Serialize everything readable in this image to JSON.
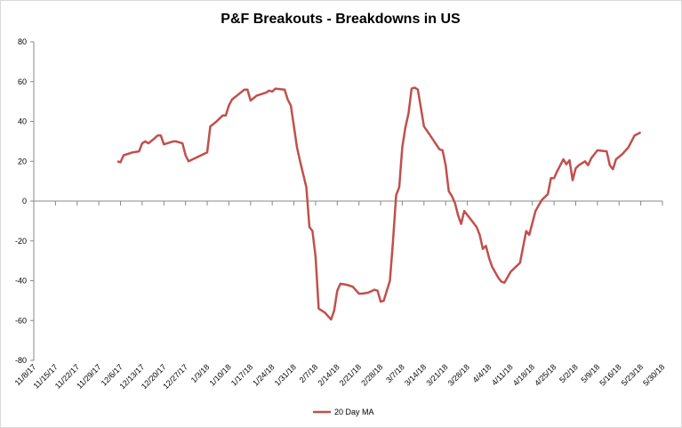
{
  "chart_data": {
    "type": "line",
    "title": "P&F Breakouts - Breakdowns in US",
    "x": [
      "12/5/17",
      "12/6/17",
      "12/7/17",
      "12/10/17",
      "12/12/17",
      "12/13/17",
      "12/14/17",
      "12/15/17",
      "12/17/17",
      "12/18/17",
      "12/19/17",
      "12/20/17",
      "12/23/17",
      "12/24/17",
      "12/26/17",
      "12/27/17",
      "12/28/17",
      "1/3/18",
      "1/4/18",
      "1/6/18",
      "1/8/18",
      "1/9/18",
      "1/10/18",
      "1/11/18",
      "1/13/18",
      "1/15/18",
      "1/16/18",
      "1/17/18",
      "1/19/18",
      "1/22/18",
      "1/23/18",
      "1/24/18",
      "1/25/18",
      "1/28/18",
      "1/29/18",
      "1/30/18",
      "2/1/18",
      "2/2/18",
      "2/4/18",
      "2/5/18",
      "2/6/18",
      "2/7/18",
      "2/8/18",
      "2/10/18",
      "2/12/18",
      "2/13/18",
      "2/14/18",
      "2/15/18",
      "2/17/18",
      "2/19/18",
      "2/21/18",
      "2/22/18",
      "2/24/18",
      "2/26/18",
      "2/27/18",
      "2/28/18",
      "3/1/18",
      "3/3/18",
      "3/4/18",
      "3/5/18",
      "3/6/18",
      "3/7/18",
      "3/8/18",
      "3/9/18",
      "3/10/18",
      "3/11/18",
      "3/12/18",
      "3/13/18",
      "3/14/18",
      "3/16/18",
      "3/19/18",
      "3/20/18",
      "3/21/18",
      "3/22/18",
      "3/23/18",
      "3/24/18",
      "3/25/18",
      "3/26/18",
      "3/27/18",
      "3/29/18",
      "3/31/18",
      "4/1/18",
      "4/2/18",
      "4/3/18",
      "4/4/18",
      "4/5/18",
      "4/7/18",
      "4/8/18",
      "4/9/18",
      "4/11/18",
      "4/14/18",
      "4/16/18",
      "4/17/18",
      "4/18/18",
      "4/19/18",
      "4/21/18",
      "4/23/18",
      "4/24/18",
      "4/25/18",
      "4/26/18",
      "4/28/18",
      "4/29/18",
      "4/30/18",
      "5/1/18",
      "5/2/18",
      "5/3/18",
      "5/5/18",
      "5/6/18",
      "5/7/18",
      "5/9/18",
      "5/12/18",
      "5/13/18",
      "5/14/18",
      "5/15/18",
      "5/17/18",
      "5/19/18",
      "5/21/18",
      "5/23/18"
    ],
    "series": [
      {
        "name": "20 Day MA",
        "color": "#c0504d",
        "values": [
          20,
          19.5,
          23,
          24.5,
          25,
          29,
          30,
          29,
          31.5,
          33,
          33,
          28.5,
          30,
          30,
          29,
          23,
          20,
          24.5,
          37.5,
          40,
          43,
          43,
          48,
          51,
          53.5,
          56,
          56,
          50.5,
          53,
          54.5,
          55.5,
          55,
          56.5,
          56,
          51,
          48,
          27,
          20,
          7,
          -13,
          -15,
          -28,
          -54,
          -56,
          -59.5,
          -55,
          -45,
          -41.5,
          -42,
          -43,
          -46.5,
          -46.5,
          -46,
          -44.5,
          -45,
          -50.5,
          -50,
          -40,
          -20,
          3,
          7,
          27,
          37,
          44,
          56.5,
          57,
          56,
          47,
          37.5,
          33,
          26,
          25.5,
          18,
          5,
          2.5,
          -1,
          -7,
          -11.5,
          -5,
          -9,
          -13,
          -17,
          -24,
          -22.5,
          -28.5,
          -33,
          -38.5,
          -40.5,
          -41,
          -35.5,
          -31,
          -15,
          -17,
          -11,
          -5,
          0.5,
          3.5,
          11.5,
          11.5,
          15,
          21,
          18.5,
          20.5,
          10.5,
          16.5,
          18,
          20,
          18,
          21.5,
          25.5,
          25,
          18,
          16,
          21,
          23.5,
          27,
          33,
          34.5
        ]
      }
    ],
    "xlim": [
      "11/8/17",
      "5/30/18"
    ],
    "xticks": [
      "11/8/17",
      "11/15/17",
      "11/22/17",
      "11/29/17",
      "12/6/17",
      "12/13/17",
      "12/20/17",
      "12/27/17",
      "1/3/18",
      "1/10/18",
      "1/17/18",
      "1/24/18",
      "1/31/18",
      "2/7/18",
      "2/14/18",
      "2/21/18",
      "2/28/18",
      "3/7/18",
      "3/14/18",
      "3/21/18",
      "3/28/18",
      "4/4/18",
      "4/11/18",
      "4/18/18",
      "4/25/18",
      "5/2/18",
      "5/9/18",
      "5/16/18",
      "5/23/18",
      "5/30/18"
    ],
    "ylim": [
      -80,
      80
    ],
    "yticks": [
      -80,
      -60,
      -40,
      -20,
      0,
      20,
      40,
      60,
      80
    ],
    "grid": false,
    "legend": "bottom"
  }
}
